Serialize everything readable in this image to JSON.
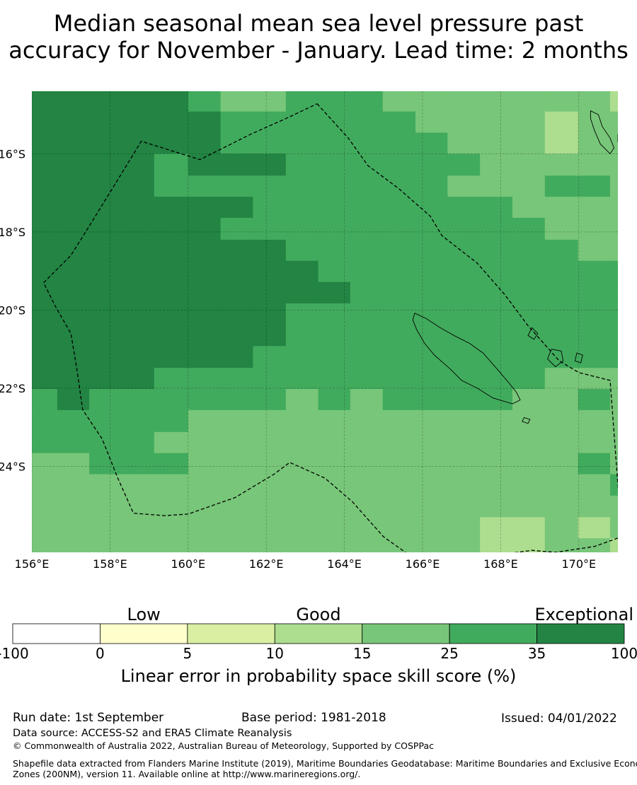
{
  "title": {
    "line1": "Median seasonal mean sea level pressure past",
    "line2": "accuracy for November - January. Lead time: 2 months"
  },
  "map": {
    "lon_range": [
      156,
      171
    ],
    "lat_range": [
      -26.2,
      -14.4
    ],
    "lon_ticks": [
      {
        "value": 156,
        "label": "156°E"
      },
      {
        "value": 158,
        "label": "158°E"
      },
      {
        "value": 160,
        "label": "160°E"
      },
      {
        "value": 162,
        "label": "162°E"
      },
      {
        "value": 164,
        "label": "164°E"
      },
      {
        "value": 166,
        "label": "166°E"
      },
      {
        "value": 168,
        "label": "168°E"
      },
      {
        "value": 170,
        "label": "170°E"
      }
    ],
    "lat_ticks": [
      {
        "value": -16,
        "label": "16°S"
      },
      {
        "value": -18,
        "label": "18°S"
      },
      {
        "value": -20,
        "label": "20°S"
      },
      {
        "value": -22,
        "label": "22°S"
      },
      {
        "value": -24,
        "label": "24°S"
      }
    ],
    "gridlines": true,
    "category_colors": [
      "#ffffff",
      "#ffffcc",
      "#d9f0a3",
      "#addd8e",
      "#78c679",
      "#41ab5d",
      "#238443"
    ],
    "skill_grid": {
      "lon_edges": [
        156,
        156.65,
        157.47,
        158.3,
        159.13,
        160,
        160.83,
        161.66,
        162.5,
        163.33,
        164.15,
        164.98,
        165.82,
        166.64,
        167.47,
        168.3,
        169.13,
        169.98,
        170.8,
        171
      ],
      "lat_edges": [
        -14.4,
        -14.92,
        -15.46,
        -16.0,
        -16.56,
        -17.1,
        -17.64,
        -18.2,
        -18.74,
        -19.28,
        -19.83,
        -20.38,
        -20.92,
        -21.48,
        -22.02,
        -22.56,
        -23.12,
        -23.66,
        -24.2,
        -24.75,
        -25.3,
        -25.84,
        -26.2
      ],
      "values": [
        [
          6,
          6,
          6,
          6,
          6,
          5,
          4,
          4,
          5,
          5,
          5,
          4,
          4,
          4,
          4,
          4,
          4,
          4,
          3
        ],
        [
          6,
          6,
          6,
          6,
          6,
          6,
          5,
          5,
          5,
          5,
          5,
          5,
          4,
          4,
          4,
          4,
          3,
          4,
          4
        ],
        [
          6,
          6,
          6,
          6,
          6,
          6,
          5,
          5,
          5,
          5,
          5,
          5,
          5,
          4,
          4,
          4,
          3,
          4,
          4
        ],
        [
          6,
          6,
          6,
          6,
          5,
          6,
          6,
          6,
          5,
          5,
          5,
          5,
          5,
          5,
          4,
          4,
          4,
          4,
          4
        ],
        [
          6,
          6,
          6,
          6,
          5,
          5,
          5,
          5,
          5,
          5,
          5,
          5,
          5,
          4,
          4,
          4,
          5,
          5,
          4
        ],
        [
          6,
          6,
          6,
          6,
          6,
          6,
          6,
          5,
          5,
          5,
          5,
          5,
          5,
          5,
          5,
          4,
          4,
          4,
          4
        ],
        [
          6,
          6,
          6,
          6,
          6,
          6,
          5,
          5,
          5,
          5,
          5,
          5,
          5,
          5,
          5,
          5,
          4,
          4,
          4
        ],
        [
          6,
          6,
          6,
          6,
          6,
          6,
          6,
          6,
          5,
          5,
          5,
          5,
          5,
          5,
          5,
          5,
          5,
          4,
          4
        ],
        [
          6,
          6,
          6,
          6,
          6,
          6,
          6,
          6,
          6,
          5,
          5,
          5,
          5,
          5,
          5,
          5,
          5,
          5,
          5
        ],
        [
          6,
          6,
          6,
          6,
          6,
          6,
          6,
          6,
          6,
          6,
          5,
          5,
          5,
          5,
          5,
          5,
          5,
          5,
          5
        ],
        [
          6,
          6,
          6,
          6,
          6,
          6,
          6,
          6,
          5,
          5,
          5,
          5,
          5,
          5,
          5,
          5,
          5,
          5,
          5
        ],
        [
          6,
          6,
          6,
          6,
          6,
          6,
          6,
          6,
          5,
          5,
          5,
          5,
          5,
          5,
          5,
          5,
          5,
          5,
          5
        ],
        [
          6,
          6,
          6,
          6,
          6,
          6,
          6,
          5,
          5,
          5,
          5,
          5,
          5,
          5,
          5,
          5,
          5,
          5,
          5
        ],
        [
          6,
          6,
          6,
          6,
          5,
          5,
          5,
          5,
          5,
          5,
          5,
          5,
          5,
          5,
          5,
          5,
          4,
          4,
          4
        ],
        [
          5,
          6,
          5,
          5,
          5,
          5,
          5,
          5,
          4,
          5,
          4,
          5,
          5,
          5,
          5,
          4,
          4,
          5,
          4
        ],
        [
          5,
          5,
          5,
          5,
          5,
          4,
          4,
          4,
          4,
          4,
          4,
          4,
          4,
          4,
          4,
          4,
          4,
          4,
          4
        ],
        [
          5,
          5,
          5,
          5,
          4,
          4,
          4,
          4,
          4,
          4,
          4,
          4,
          4,
          4,
          4,
          4,
          4,
          4,
          4
        ],
        [
          4,
          4,
          5,
          5,
          5,
          4,
          4,
          4,
          4,
          4,
          4,
          4,
          4,
          4,
          4,
          4,
          4,
          5,
          4
        ],
        [
          4,
          4,
          4,
          4,
          4,
          4,
          4,
          4,
          4,
          4,
          4,
          4,
          4,
          4,
          4,
          4,
          4,
          4,
          5
        ],
        [
          4,
          4,
          4,
          4,
          4,
          4,
          4,
          4,
          4,
          4,
          4,
          4,
          4,
          4,
          4,
          4,
          4,
          4,
          4
        ],
        [
          4,
          4,
          4,
          4,
          4,
          4,
          4,
          4,
          4,
          4,
          4,
          4,
          4,
          4,
          3,
          3,
          4,
          3,
          4
        ],
        [
          4,
          4,
          4,
          4,
          4,
          4,
          4,
          4,
          4,
          4,
          4,
          4,
          4,
          4,
          3,
          3,
          4,
          4,
          3
        ]
      ]
    },
    "eez_boundary": [
      [
        163.3,
        -14.72
      ],
      [
        164.1,
        -15.6
      ],
      [
        164.6,
        -16.3
      ],
      [
        165.4,
        -16.9
      ],
      [
        166.2,
        -17.6
      ],
      [
        166.5,
        -18.1
      ],
      [
        167.4,
        -18.8
      ],
      [
        168.1,
        -19.6
      ],
      [
        168.7,
        -20.4
      ],
      [
        169.5,
        -21.3
      ],
      [
        170,
        -21.6
      ],
      [
        170.8,
        -21.8
      ],
      [
        171.1,
        -25.8
      ],
      [
        170.4,
        -26.05
      ],
      [
        169.4,
        -26.2
      ],
      [
        168.8,
        -26.15
      ],
      [
        166.2,
        -26.5
      ],
      [
        165.7,
        -26.3
      ],
      [
        165,
        -25.8
      ],
      [
        164.2,
        -24.9
      ],
      [
        163.5,
        -24.3
      ],
      [
        162.6,
        -23.9
      ],
      [
        162.2,
        -24.2
      ],
      [
        161.2,
        -24.8
      ],
      [
        160,
        -25.22
      ],
      [
        159.4,
        -25.26
      ],
      [
        158.6,
        -25.2
      ],
      [
        158.2,
        -24.3
      ],
      [
        157.8,
        -23.3
      ],
      [
        157.3,
        -22.55
      ],
      [
        157.15,
        -21.5
      ],
      [
        157,
        -20.6
      ],
      [
        156.6,
        -19.9
      ],
      [
        156.3,
        -19.3
      ],
      [
        157,
        -18.6
      ],
      [
        157.5,
        -17.8
      ],
      [
        158.3,
        -16.5
      ],
      [
        158.8,
        -15.68
      ],
      [
        160.3,
        -16.15
      ],
      [
        161.6,
        -15.5
      ],
      [
        162.5,
        -15.1
      ],
      [
        163.3,
        -14.72
      ]
    ],
    "islands": [
      [
        [
          165.8,
          -20.08
        ],
        [
          166.1,
          -20.22
        ],
        [
          166.45,
          -20.45
        ],
        [
          166.8,
          -20.65
        ],
        [
          167.2,
          -20.85
        ],
        [
          167.55,
          -21.1
        ],
        [
          167.9,
          -21.5
        ],
        [
          168.2,
          -21.85
        ],
        [
          168.4,
          -22.1
        ],
        [
          168.5,
          -22.3
        ],
        [
          168.3,
          -22.4
        ],
        [
          167.8,
          -22.25
        ],
        [
          167.4,
          -22.0
        ],
        [
          167,
          -21.8
        ],
        [
          166.7,
          -21.5
        ],
        [
          166.3,
          -21.15
        ],
        [
          166.05,
          -20.85
        ],
        [
          165.85,
          -20.5
        ],
        [
          165.75,
          -20.25
        ],
        [
          165.8,
          -20.08
        ]
      ],
      [
        [
          169.3,
          -21.0
        ],
        [
          169.55,
          -21.05
        ],
        [
          169.6,
          -21.3
        ],
        [
          169.4,
          -21.45
        ],
        [
          169.2,
          -21.25
        ],
        [
          169.3,
          -21.0
        ]
      ],
      [
        [
          169.95,
          -21.1
        ],
        [
          170.1,
          -21.15
        ],
        [
          170.05,
          -21.35
        ],
        [
          169.9,
          -21.3
        ],
        [
          169.95,
          -21.1
        ]
      ],
      [
        [
          168.8,
          -20.45
        ],
        [
          168.95,
          -20.6
        ],
        [
          168.85,
          -20.75
        ],
        [
          168.7,
          -20.65
        ],
        [
          168.8,
          -20.45
        ]
      ],
      [
        [
          168.6,
          -22.75
        ],
        [
          168.75,
          -22.8
        ],
        [
          168.7,
          -22.9
        ],
        [
          168.55,
          -22.85
        ],
        [
          168.6,
          -22.75
        ]
      ],
      [
        [
          170.3,
          -14.9
        ],
        [
          170.5,
          -15.0
        ],
        [
          170.6,
          -15.3
        ],
        [
          170.8,
          -15.6
        ],
        [
          170.9,
          -15.85
        ],
        [
          170.8,
          -16.0
        ],
        [
          170.55,
          -15.75
        ],
        [
          170.4,
          -15.4
        ],
        [
          170.3,
          -15.1
        ],
        [
          170.3,
          -14.9
        ]
      ],
      [
        [
          171.0,
          -15.5
        ],
        [
          171.25,
          -15.55
        ],
        [
          171.2,
          -15.8
        ],
        [
          171.0,
          -15.7
        ],
        [
          171.0,
          -15.5
        ]
      ],
      [
        [
          171.2,
          -16.2
        ],
        [
          171.45,
          -16.3
        ],
        [
          171.6,
          -16.55
        ],
        [
          171.5,
          -16.7
        ],
        [
          171.25,
          -16.5
        ],
        [
          171.2,
          -16.2
        ]
      ],
      [
        [
          171.7,
          -15.0
        ],
        [
          171.9,
          -15.2
        ],
        [
          171.95,
          -15.45
        ],
        [
          171.8,
          -15.5
        ],
        [
          171.7,
          -15.2
        ],
        [
          171.7,
          -15.0
        ]
      ],
      [
        [
          171.6,
          -17.0
        ],
        [
          171.8,
          -17.1
        ],
        [
          171.75,
          -17.4
        ],
        [
          171.55,
          -17.3
        ],
        [
          171.6,
          -17.0
        ]
      ],
      [
        [
          171.8,
          -18.3
        ],
        [
          172.05,
          -18.4
        ],
        [
          172.0,
          -18.7
        ],
        [
          171.75,
          -18.55
        ],
        [
          171.8,
          -18.3
        ]
      ]
    ]
  },
  "colorbar": {
    "band_labels": [
      {
        "text": "Low",
        "at": 1.5
      },
      {
        "text": "Good",
        "at": 3.5
      },
      {
        "text": "Exceptional",
        "at": 6.5
      }
    ],
    "bounds": [
      "-100",
      "0",
      "5",
      "10",
      "15",
      "25",
      "35",
      "100"
    ],
    "title": "Linear error in probability space skill score (%)"
  },
  "footer": {
    "run_date": "Run date: 1st September",
    "base_period": "Base period: 1981-2018",
    "issued": "Issued: 04/01/2022",
    "data_source": "Data source: ACCESS-S2 and ERA5 Climate Reanalysis",
    "copyright": "© Commonwealth of Australia 2022, Australian Bureau of Meteorology, Supported by COSPPac",
    "shapefile_line1": "Shapefile data extracted from Flanders Marine Institute (2019), Maritime Boundaries Geodatabase: Maritime Boundaries and Exclusive Economic",
    "shapefile_line2": "Zones (200NM), version 11. Available online at http://www.marineregions.org/."
  }
}
